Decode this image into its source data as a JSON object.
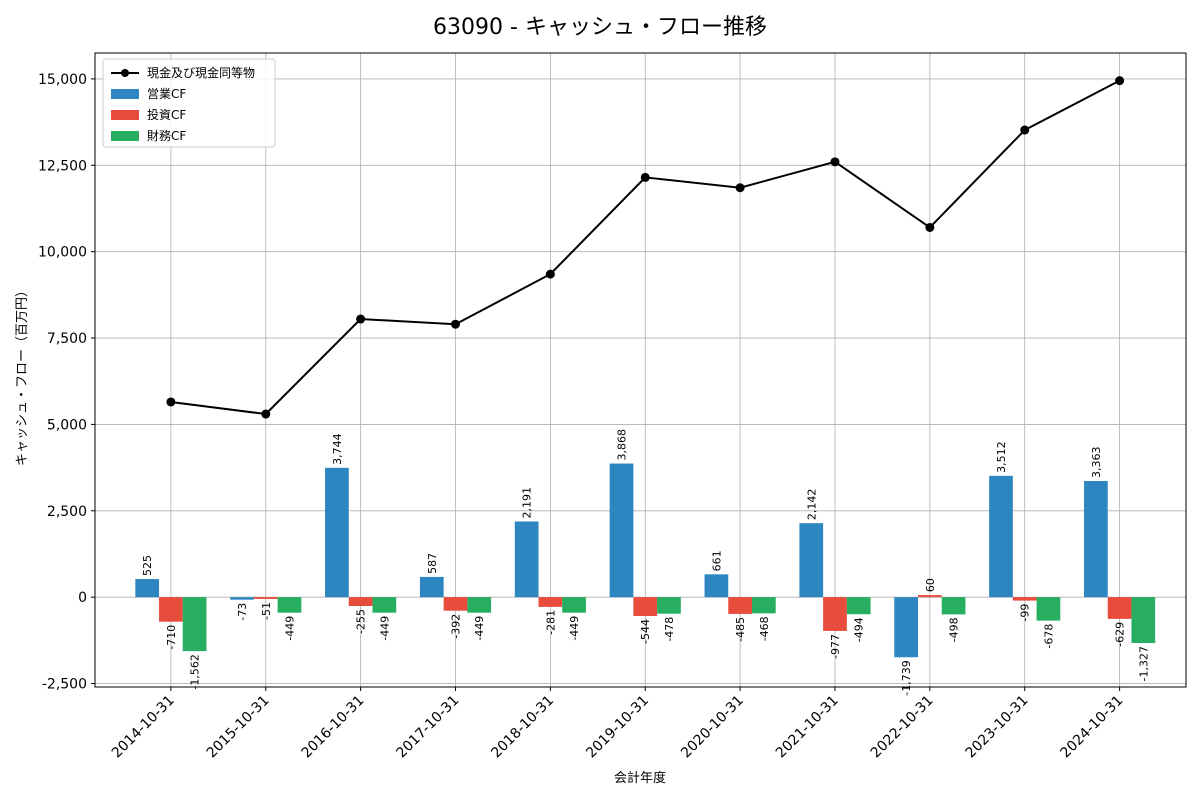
{
  "chart_data": {
    "type": "bar",
    "title": "63090 - キャッシュ・フロー推移",
    "xlabel": "会計年度",
    "ylabel": "キャッシュ・フロー（百万円）",
    "ylim": [
      -2600,
      15750
    ],
    "yticks": [
      -2500,
      0,
      2500,
      5000,
      7500,
      10000,
      12500,
      15000
    ],
    "ytick_labels": [
      "-2,500",
      "0",
      "2,500",
      "5,000",
      "7,500",
      "10,000",
      "12,500",
      "15,000"
    ],
    "grid": true,
    "legend_position": "top-left",
    "categories": [
      "2014-10-31",
      "2015-10-31",
      "2016-10-31",
      "2017-10-31",
      "2018-10-31",
      "2019-10-31",
      "2020-10-31",
      "2021-10-31",
      "2022-10-31",
      "2023-10-31",
      "2024-10-31"
    ],
    "series": [
      {
        "name": "営業CF",
        "type": "bar",
        "color": "#2e86c1",
        "values": [
          525,
          -73,
          3744,
          587,
          2191,
          3868,
          661,
          2142,
          -1739,
          3512,
          3363
        ],
        "labels": [
          "525",
          "-73",
          "3,744",
          "587",
          "2,191",
          "3,868",
          "661",
          "2,142",
          "-1,739",
          "3,512",
          "3,363"
        ]
      },
      {
        "name": "投資CF",
        "type": "bar",
        "color": "#e74c3c",
        "values": [
          -710,
          -51,
          -255,
          -392,
          -281,
          -544,
          -485,
          -977,
          60,
          -99,
          -629
        ],
        "labels": [
          "-710",
          "-51",
          "-255",
          "-392",
          "-281",
          "-544",
          "-485",
          "-977",
          "60",
          "-99",
          "-629"
        ]
      },
      {
        "name": "財務CF",
        "type": "bar",
        "color": "#27ae60",
        "values": [
          -1562,
          -449,
          -449,
          -449,
          -449,
          -478,
          -468,
          -494,
          -498,
          -678,
          -1327
        ],
        "labels": [
          "-1,562",
          "-449",
          "-449",
          "-449",
          "-449",
          "-478",
          "-468",
          "-494",
          "-498",
          "-678",
          "-1,327"
        ]
      },
      {
        "name": "現金及び現金同等物",
        "type": "line",
        "color": "#000000",
        "values": [
          5650,
          5300,
          8050,
          7900,
          9350,
          12150,
          11850,
          12600,
          10700,
          13520,
          14950
        ]
      }
    ]
  }
}
